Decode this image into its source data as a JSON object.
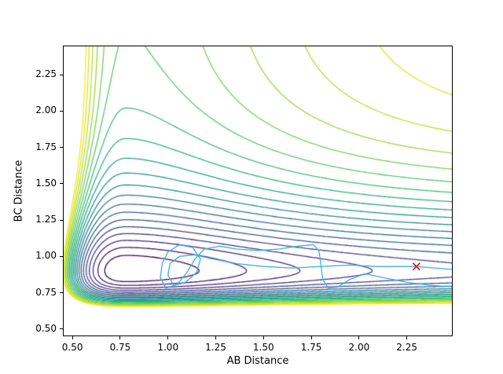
{
  "figure": {
    "background": "#ffffff",
    "spine_color": "#000000",
    "tick_color": "#000000"
  },
  "chart_data": {
    "type": "contour",
    "title": "",
    "xlabel": "AB Distance",
    "ylabel": "BC Distance",
    "xlim": [
      0.45,
      2.49
    ],
    "ylim": [
      0.45,
      2.45
    ],
    "xtick_values": [
      0.5,
      0.75,
      1.0,
      1.25,
      1.5,
      1.75,
      2.0,
      2.25
    ],
    "xtick_labels": [
      "0.50",
      "0.75",
      "1.00",
      "1.25",
      "1.50",
      "1.75",
      "2.00",
      "2.25"
    ],
    "ytick_values": [
      0.5,
      0.75,
      1.0,
      1.25,
      1.5,
      1.75,
      2.0,
      2.25
    ],
    "ytick_labels": [
      "0.50",
      "0.75",
      "1.00",
      "1.25",
      "1.50",
      "1.75",
      "2.00",
      "2.25"
    ],
    "grid": false,
    "legend": null,
    "colormap": "viridis",
    "colormap_stops": [
      [
        0.0,
        "#440154"
      ],
      [
        0.1,
        "#482475"
      ],
      [
        0.2,
        "#414487"
      ],
      [
        0.3,
        "#355f8d"
      ],
      [
        0.4,
        "#2a788e"
      ],
      [
        0.5,
        "#21918c"
      ],
      [
        0.6,
        "#22a884"
      ],
      [
        0.7,
        "#44bf70"
      ],
      [
        0.8,
        "#7ad151"
      ],
      [
        0.9,
        "#bddf26"
      ],
      [
        1.0,
        "#fde725"
      ]
    ],
    "contour": {
      "levels_min": 0.1,
      "levels_max": 1.96,
      "levels_count": 20,
      "linewidth": 1.3,
      "potential_model": {
        "form": "V(x,y) = morse(x; DA,reA) + morse(y; DB,reB)",
        "DA": 0.55,
        "reA": 0.78,
        "aA_inner": 3.2,
        "aA_outer": 1.45,
        "DB": 1.5,
        "reB": 0.9,
        "aB_inner": 3.1,
        "aB_outer": 2.8
      }
    },
    "trajectory": {
      "color": "#3fb0e8",
      "linewidth": 1.3,
      "points": [
        [
          2.49,
          0.79
        ],
        [
          2.38,
          0.8
        ],
        [
          2.26,
          0.82
        ],
        [
          2.14,
          0.85
        ],
        [
          2.03,
          0.88
        ],
        [
          1.95,
          0.84
        ],
        [
          1.89,
          0.79
        ],
        [
          1.84,
          0.78
        ],
        [
          1.81,
          0.84
        ],
        [
          1.8,
          0.95
        ],
        [
          1.79,
          1.04
        ],
        [
          1.76,
          1.08
        ],
        [
          1.68,
          1.07
        ],
        [
          1.58,
          1.05
        ],
        [
          1.47,
          1.04
        ],
        [
          1.36,
          1.05
        ],
        [
          1.27,
          1.07
        ],
        [
          1.19,
          1.05
        ],
        [
          1.14,
          0.98
        ],
        [
          1.1,
          0.89
        ],
        [
          1.05,
          0.81
        ],
        [
          0.99,
          0.78
        ],
        [
          0.96,
          0.85
        ],
        [
          0.97,
          0.95
        ],
        [
          1.0,
          1.03
        ],
        [
          1.06,
          1.08
        ],
        [
          1.13,
          1.06
        ],
        [
          1.17,
          0.98
        ],
        [
          1.15,
          0.89
        ],
        [
          1.09,
          0.82
        ],
        [
          1.03,
          0.8
        ],
        [
          1.0,
          0.87
        ],
        [
          1.01,
          0.95
        ],
        [
          1.06,
          1.0
        ],
        [
          1.14,
          1.01
        ],
        [
          1.24,
          0.98
        ],
        [
          1.36,
          0.95
        ],
        [
          1.5,
          0.93
        ],
        [
          1.65,
          0.92
        ],
        [
          1.8,
          0.93
        ],
        [
          1.95,
          0.94
        ],
        [
          2.1,
          0.93
        ],
        [
          2.22,
          0.93
        ],
        [
          2.3,
          0.93
        ],
        [
          2.4,
          0.92
        ],
        [
          2.49,
          0.91
        ]
      ]
    },
    "end_marker": {
      "symbol": "x",
      "x": 2.3,
      "y": 0.93,
      "color": "#ff0000",
      "size": 9,
      "linewidth": 1.6
    }
  }
}
